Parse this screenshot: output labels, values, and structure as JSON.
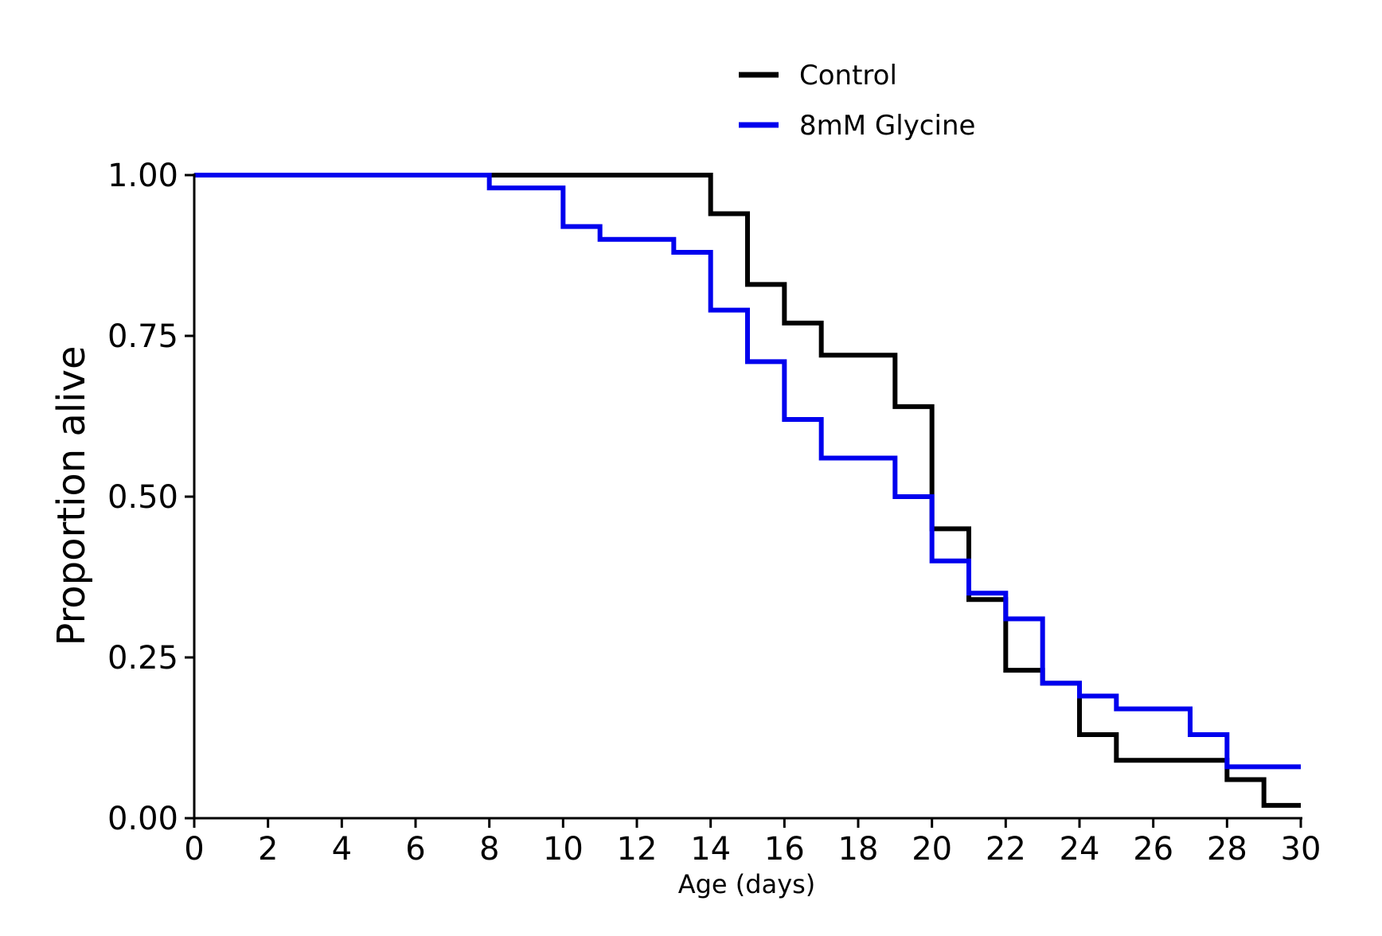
{
  "chart_data": {
    "type": "line",
    "step": true,
    "xlabel": "Age (days)",
    "ylabel": "Proportion alive",
    "xlim": [
      0,
      30
    ],
    "ylim": [
      0,
      1
    ],
    "xticks": [
      "0",
      "2",
      "4",
      "6",
      "8",
      "10",
      "12",
      "14",
      "16",
      "18",
      "20",
      "22",
      "24",
      "26",
      "28",
      "30"
    ],
    "yticks": [
      "0.00",
      "0.25",
      "0.50",
      "0.75",
      "1.00"
    ],
    "grid": false,
    "legend_position": "top-center",
    "series": [
      {
        "name": "Control",
        "color": "#000000",
        "x": [
          0,
          14,
          15,
          16,
          17,
          19,
          20,
          21,
          22,
          23,
          24,
          25,
          28,
          29,
          30
        ],
        "y": [
          1.0,
          0.94,
          0.83,
          0.77,
          0.72,
          0.64,
          0.45,
          0.34,
          0.23,
          0.21,
          0.13,
          0.09,
          0.06,
          0.02,
          0.02
        ]
      },
      {
        "name": "8mM Glycine",
        "color": "#0000ee",
        "x": [
          0,
          8,
          10,
          11,
          13,
          14,
          15,
          16,
          17,
          19,
          20,
          21,
          22,
          23,
          24,
          25,
          27,
          28,
          30
        ],
        "y": [
          1.0,
          0.98,
          0.92,
          0.9,
          0.88,
          0.79,
          0.71,
          0.62,
          0.56,
          0.5,
          0.4,
          0.35,
          0.31,
          0.21,
          0.19,
          0.17,
          0.13,
          0.08,
          0.08
        ]
      }
    ]
  }
}
